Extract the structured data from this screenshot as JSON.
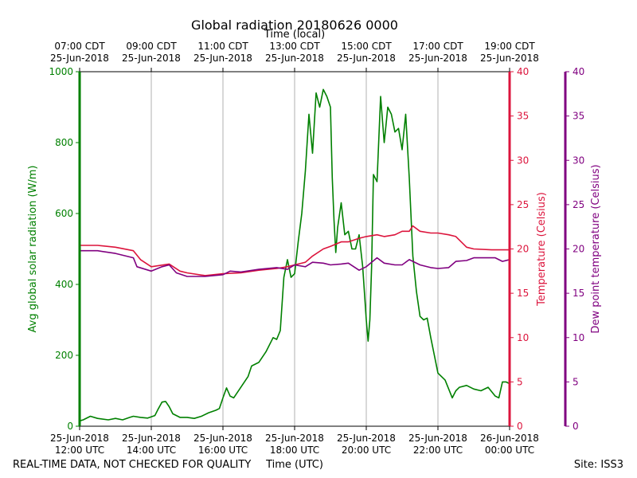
{
  "page": {
    "title": "Global radiation 20180626 0000",
    "footer_left": "REAL-TIME DATA, NOT CHECKED FOR QUALITY",
    "footer_right": "Site: ISS3"
  },
  "chart_data": {
    "type": "line",
    "title": "Global radiation 20180626 0000",
    "xlabel_bottom": "Time (UTC)",
    "xlabel_top": "Time (local)",
    "x_unit": "hours UTC on 25-Jun-2018",
    "xlim": [
      12,
      24
    ],
    "x_ticks": [
      12,
      14,
      16,
      18,
      20,
      22,
      24
    ],
    "x_tick_labels_bottom": [
      [
        "25-Jun-2018",
        "12:00 UTC"
      ],
      [
        "25-Jun-2018",
        "14:00 UTC"
      ],
      [
        "25-Jun-2018",
        "16:00 UTC"
      ],
      [
        "25-Jun-2018",
        "18:00 UTC"
      ],
      [
        "25-Jun-2018",
        "20:00 UTC"
      ],
      [
        "25-Jun-2018",
        "22:00 UTC"
      ],
      [
        "26-Jun-2018",
        "00:00 UTC"
      ]
    ],
    "x_tick_labels_top": [
      [
        "07:00 CDT",
        "25-Jun-2018"
      ],
      [
        "09:00 CDT",
        "25-Jun-2018"
      ],
      [
        "11:00 CDT",
        "25-Jun-2018"
      ],
      [
        "13:00 CDT",
        "25-Jun-2018"
      ],
      [
        "15:00 CDT",
        "25-Jun-2018"
      ],
      [
        "17:00 CDT",
        "25-Jun-2018"
      ],
      [
        "19:00 CDT",
        "25-Jun-2018"
      ]
    ],
    "grid": "vertical",
    "axes": {
      "left": {
        "label": "Avg global solar radiation (W/m)",
        "ylim": [
          0,
          1000
        ],
        "ticks": [
          0,
          200,
          400,
          600,
          800,
          1000
        ],
        "color": "#008000"
      },
      "right": {
        "label": "Temperature (Celsius)",
        "ylim": [
          0,
          40
        ],
        "ticks": [
          0,
          5,
          10,
          15,
          20,
          25,
          30,
          35,
          40
        ],
        "color": "#dc143c"
      },
      "far_right": {
        "label": "Dew point temperature (Celsius)",
        "ylim": [
          0,
          40
        ],
        "ticks": [
          0,
          5,
          10,
          15,
          20,
          25,
          30,
          35,
          40
        ],
        "color": "#800080"
      }
    },
    "series": [
      {
        "name": "Avg global solar radiation",
        "axis": "left",
        "color": "#008000",
        "x": [
          12.0,
          12.1,
          12.3,
          12.5,
          12.8,
          13.0,
          13.2,
          13.4,
          13.5,
          13.7,
          13.9,
          14.1,
          14.2,
          14.3,
          14.4,
          14.5,
          14.6,
          14.8,
          15.0,
          15.2,
          15.4,
          15.6,
          15.8,
          15.9,
          16.0,
          16.1,
          16.2,
          16.3,
          16.5,
          16.7,
          16.8,
          17.0,
          17.2,
          17.4,
          17.5,
          17.6,
          17.7,
          17.8,
          17.9,
          18.0,
          18.1,
          18.2,
          18.3,
          18.4,
          18.5,
          18.6,
          18.7,
          18.8,
          18.9,
          19.0,
          19.05,
          19.1,
          19.15,
          19.2,
          19.3,
          19.4,
          19.5,
          19.6,
          19.7,
          19.8,
          19.9,
          20.0,
          20.05,
          20.1,
          20.15,
          20.2,
          20.3,
          20.4,
          20.5,
          20.55,
          20.6,
          20.7,
          20.8,
          20.9,
          21.0,
          21.1,
          21.2,
          21.3,
          21.4,
          21.5,
          21.6,
          21.7,
          21.8,
          21.9,
          22.0,
          22.1,
          22.2,
          22.4,
          22.5,
          22.6,
          22.8,
          23.0,
          23.2,
          23.4,
          23.6,
          23.7,
          23.8,
          23.9,
          24.0
        ],
        "values": [
          15,
          18,
          28,
          22,
          18,
          22,
          18,
          25,
          28,
          25,
          23,
          30,
          50,
          68,
          70,
          55,
          35,
          25,
          25,
          22,
          28,
          38,
          45,
          50,
          80,
          108,
          85,
          80,
          110,
          140,
          170,
          180,
          210,
          250,
          245,
          270,
          420,
          470,
          420,
          430,
          520,
          600,
          720,
          880,
          770,
          940,
          900,
          950,
          930,
          900,
          700,
          580,
          490,
          560,
          630,
          540,
          550,
          500,
          500,
          540,
          450,
          300,
          240,
          300,
          450,
          710,
          690,
          930,
          800,
          850,
          900,
          880,
          830,
          840,
          780,
          880,
          700,
          480,
          380,
          310,
          300,
          305,
          250,
          200,
          150,
          140,
          130,
          80,
          100,
          110,
          115,
          105,
          100,
          110,
          85,
          80,
          125,
          125,
          120
        ]
      },
      {
        "name": "Temperature",
        "axis": "right",
        "color": "#dc143c",
        "x": [
          12.0,
          12.5,
          13.0,
          13.5,
          13.7,
          14.0,
          14.5,
          14.8,
          15.0,
          15.5,
          16.0,
          16.5,
          17.0,
          17.5,
          17.8,
          18.0,
          18.3,
          18.5,
          18.8,
          19.0,
          19.3,
          19.5,
          19.8,
          20.0,
          20.3,
          20.5,
          20.8,
          21.0,
          21.2,
          21.3,
          21.5,
          21.8,
          22.0,
          22.3,
          22.5,
          22.8,
          23.0,
          23.5,
          24.0
        ],
        "values": [
          20.4,
          20.4,
          20.2,
          19.8,
          18.8,
          18.0,
          18.3,
          17.5,
          17.3,
          17.0,
          17.2,
          17.3,
          17.6,
          17.8,
          18.0,
          18.2,
          18.5,
          19.2,
          20.0,
          20.3,
          20.8,
          20.8,
          21.2,
          21.4,
          21.6,
          21.4,
          21.6,
          22.0,
          22.0,
          22.6,
          22.0,
          21.8,
          21.8,
          21.6,
          21.4,
          20.2,
          20.0,
          19.9,
          19.9
        ]
      },
      {
        "name": "Dew point temperature",
        "axis": "far_right",
        "color": "#800080",
        "x": [
          12.0,
          12.5,
          13.0,
          13.5,
          13.6,
          14.0,
          14.3,
          14.5,
          14.7,
          15.0,
          15.5,
          16.0,
          16.2,
          16.5,
          17.0,
          17.5,
          17.8,
          18.0,
          18.3,
          18.5,
          18.8,
          19.0,
          19.3,
          19.5,
          19.8,
          20.0,
          20.3,
          20.5,
          20.8,
          21.0,
          21.2,
          21.5,
          21.8,
          22.0,
          22.3,
          22.5,
          22.8,
          23.0,
          23.3,
          23.6,
          23.8,
          24.0
        ],
        "values": [
          19.8,
          19.8,
          19.5,
          19.0,
          18.0,
          17.5,
          18.0,
          18.2,
          17.3,
          16.9,
          16.9,
          17.1,
          17.5,
          17.4,
          17.7,
          17.9,
          17.7,
          18.2,
          18.0,
          18.5,
          18.4,
          18.2,
          18.3,
          18.4,
          17.6,
          18.0,
          19.0,
          18.4,
          18.2,
          18.2,
          18.8,
          18.2,
          17.9,
          17.8,
          17.9,
          18.6,
          18.7,
          19.0,
          19.0,
          19.0,
          18.6,
          18.8
        ]
      }
    ]
  }
}
